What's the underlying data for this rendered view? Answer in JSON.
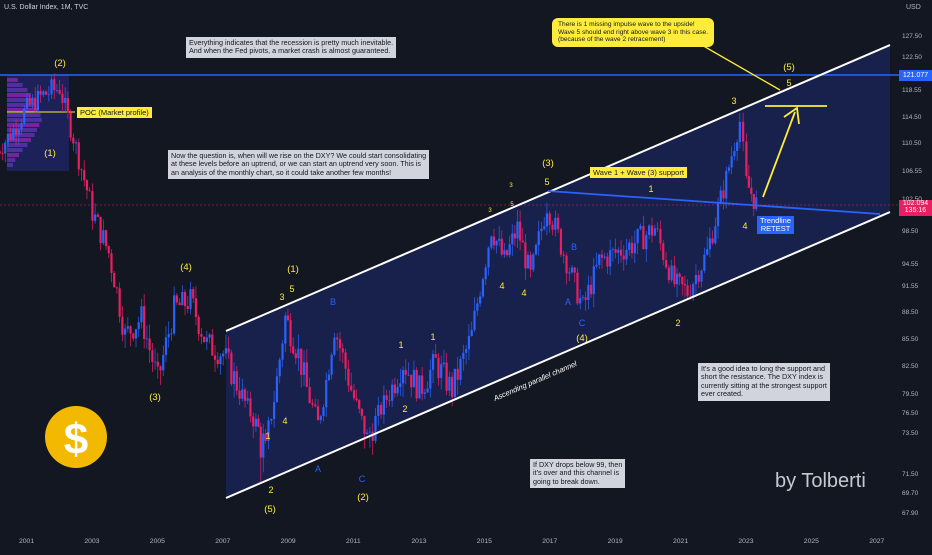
{
  "header": {
    "symbol": "U.S. Dollar Index, 1M, TVC",
    "currency": "USD"
  },
  "chart_data": {
    "type": "candlestick",
    "title": "U.S. Dollar Index, 1M, TVC",
    "x_ticks": [
      "2001",
      "2003",
      "2005",
      "2007",
      "2009",
      "2011",
      "2013",
      "2015",
      "2017",
      "2019",
      "2021",
      "2023",
      "2025",
      "2027"
    ],
    "y_ticks": [
      "127.50",
      "122.50",
      "118.55",
      "114.50",
      "110.50",
      "106.55",
      "102.50",
      "98.50",
      "94.55",
      "91.55",
      "88.50",
      "85.50",
      "82.50",
      "79.50",
      "76.50",
      "73.50",
      "71.50",
      "69.70",
      "67.90"
    ],
    "price_series": [
      {
        "x": 2000.0,
        "close": 109
      },
      {
        "x": 2000.5,
        "close": 112
      },
      {
        "x": 2001.0,
        "close": 116
      },
      {
        "x": 2001.5,
        "close": 118
      },
      {
        "x": 2002.0,
        "close": 119
      },
      {
        "x": 2002.5,
        "close": 110
      },
      {
        "x": 2003.0,
        "close": 101
      },
      {
        "x": 2003.5,
        "close": 96
      },
      {
        "x": 2004.0,
        "close": 86
      },
      {
        "x": 2004.5,
        "close": 88
      },
      {
        "x": 2005.0,
        "close": 81
      },
      {
        "x": 2005.5,
        "close": 89
      },
      {
        "x": 2006.0,
        "close": 90
      },
      {
        "x": 2006.5,
        "close": 85
      },
      {
        "x": 2007.0,
        "close": 84
      },
      {
        "x": 2007.5,
        "close": 80
      },
      {
        "x": 2008.0,
        "close": 75
      },
      {
        "x": 2008.3,
        "close": 72
      },
      {
        "x": 2008.9,
        "close": 88
      },
      {
        "x": 2009.3,
        "close": 84
      },
      {
        "x": 2009.9,
        "close": 75
      },
      {
        "x": 2010.4,
        "close": 87
      },
      {
        "x": 2011.0,
        "close": 79
      },
      {
        "x": 2011.4,
        "close": 73
      },
      {
        "x": 2012.0,
        "close": 79
      },
      {
        "x": 2012.5,
        "close": 83
      },
      {
        "x": 2013.0,
        "close": 80
      },
      {
        "x": 2013.5,
        "close": 83
      },
      {
        "x": 2014.0,
        "close": 80
      },
      {
        "x": 2014.6,
        "close": 86
      },
      {
        "x": 2015.2,
        "close": 99
      },
      {
        "x": 2015.6,
        "close": 95
      },
      {
        "x": 2016.0,
        "close": 99
      },
      {
        "x": 2016.4,
        "close": 93
      },
      {
        "x": 2016.9,
        "close": 102
      },
      {
        "x": 2017.5,
        "close": 95
      },
      {
        "x": 2018.0,
        "close": 89
      },
      {
        "x": 2018.5,
        "close": 95
      },
      {
        "x": 2019.0,
        "close": 96
      },
      {
        "x": 2019.5,
        "close": 97
      },
      {
        "x": 2020.2,
        "close": 99
      },
      {
        "x": 2020.8,
        "close": 92
      },
      {
        "x": 2021.2,
        "close": 91
      },
      {
        "x": 2021.8,
        "close": 96
      },
      {
        "x": 2022.3,
        "close": 104
      },
      {
        "x": 2022.8,
        "close": 114
      },
      {
        "x": 2023.0,
        "close": 105
      },
      {
        "x": 2023.3,
        "close": 102
      }
    ],
    "current_price": "102.094",
    "current_price_sub": "135:16",
    "horizontal_level": "121.077",
    "wave_labels": [
      {
        "text": "(2)",
        "x": 2002.0,
        "color": "yellow"
      },
      {
        "text": "(1)",
        "x": 2001.5,
        "color": "yellow"
      },
      {
        "text": "(4)",
        "x": 2005.9,
        "color": "yellow"
      },
      {
        "text": "(3)",
        "x": 2004.9,
        "color": "yellow"
      },
      {
        "text": "(1)",
        "x": 2009.1,
        "color": "yellow"
      },
      {
        "text": "3",
        "x": 2008.8,
        "color": "yellow"
      },
      {
        "text": "5",
        "x": 2009.1,
        "color": "yellow"
      },
      {
        "text": "B",
        "x": 2010.4,
        "color": "blue"
      },
      {
        "text": "1",
        "x": 2008.4,
        "color": "yellow"
      },
      {
        "text": "4",
        "x": 2008.9,
        "color": "yellow"
      },
      {
        "text": "2",
        "x": 2008.4,
        "color": "yellow"
      },
      {
        "text": "(5)",
        "x": 2008.5,
        "color": "yellow"
      },
      {
        "text": "A",
        "x": 2009.9,
        "color": "blue"
      },
      {
        "text": "C",
        "x": 2011.4,
        "color": "blue"
      },
      {
        "text": "(2)",
        "x": 2011.4,
        "color": "yellow"
      },
      {
        "text": "1",
        "x": 2012.7,
        "color": "yellow"
      },
      {
        "text": "2",
        "x": 2012.7,
        "color": "yellow"
      },
      {
        "text": "1",
        "x": 2013.4,
        "color": "yellow"
      },
      {
        "text": "3",
        "x": 2015.0,
        "color": "yellow"
      },
      {
        "text": "3",
        "x": 2015.8,
        "color": "yellow"
      },
      {
        "text": "4",
        "x": 2015.6,
        "color": "yellow"
      },
      {
        "text": "5",
        "x": 2016.1,
        "color": "yellow"
      },
      {
        "text": "(3)",
        "x": 2017.0,
        "color": "yellow"
      },
      {
        "text": "5",
        "x": 2017.0,
        "color": "yellow"
      },
      {
        "text": "4",
        "x": 2016.2,
        "color": "yellow"
      },
      {
        "text": "B",
        "x": 2017.9,
        "color": "blue"
      },
      {
        "text": "A",
        "x": 2017.6,
        "color": "blue"
      },
      {
        "text": "C",
        "x": 2018.1,
        "color": "blue"
      },
      {
        "text": "(4)",
        "x": 2018.1,
        "color": "yellow"
      },
      {
        "text": "1",
        "x": 2020.0,
        "color": "yellow"
      },
      {
        "text": "2",
        "x": 2020.9,
        "color": "yellow"
      },
      {
        "text": "3",
        "x": 2022.8,
        "color": "yellow"
      },
      {
        "text": "4",
        "x": 2023.1,
        "color": "yellow"
      },
      {
        "text": "(5)",
        "x": 2024.4,
        "color": "yellow"
      },
      {
        "text": "5",
        "x": 2024.4,
        "color": "yellow"
      }
    ]
  },
  "annotations": {
    "note_recession": "Everything indicates that the recession is pretty much inevitable.\nAnd when the Fed pivots, a market crash is almost guaranteed.",
    "note_question": "Now the question is, when will we rise on the DXY? We could start consolidating\nat these levels before an uptrend, or we can start an uptrend very soon. This is\nan analysis of the monthly chart, so it could take another few months!",
    "note_impulse": "There is 1 missing impulse wave to the upside!\nWave 5 should end right above wave 3 in this case.\n(because of the wave 2 retracement)",
    "note_support": "It's a good idea to long the support and\nshort the resistance. The DXY index is\ncurrently sitting at the strongest support\never created.",
    "note_break": "If DXY drops below 99, then\nit's over and this channel is\ngoing to break down.",
    "poc_label": "POC (Market profile)",
    "wave_support_label": "Wave 1 + Wave (3) support",
    "trendline_retest": "Trendline\nRETEST",
    "channel_label": "Ascending parallel channel",
    "watermark": "by Tolberti",
    "dollar_symbol": "$"
  },
  "colors": {
    "background": "#131722",
    "up": "#2962ff",
    "down": "#e91e63",
    "level_line": "#2962ff",
    "channel": "#ffffff",
    "label_yellow": "#ffeb3b",
    "wave_blue": "#2962ff"
  }
}
